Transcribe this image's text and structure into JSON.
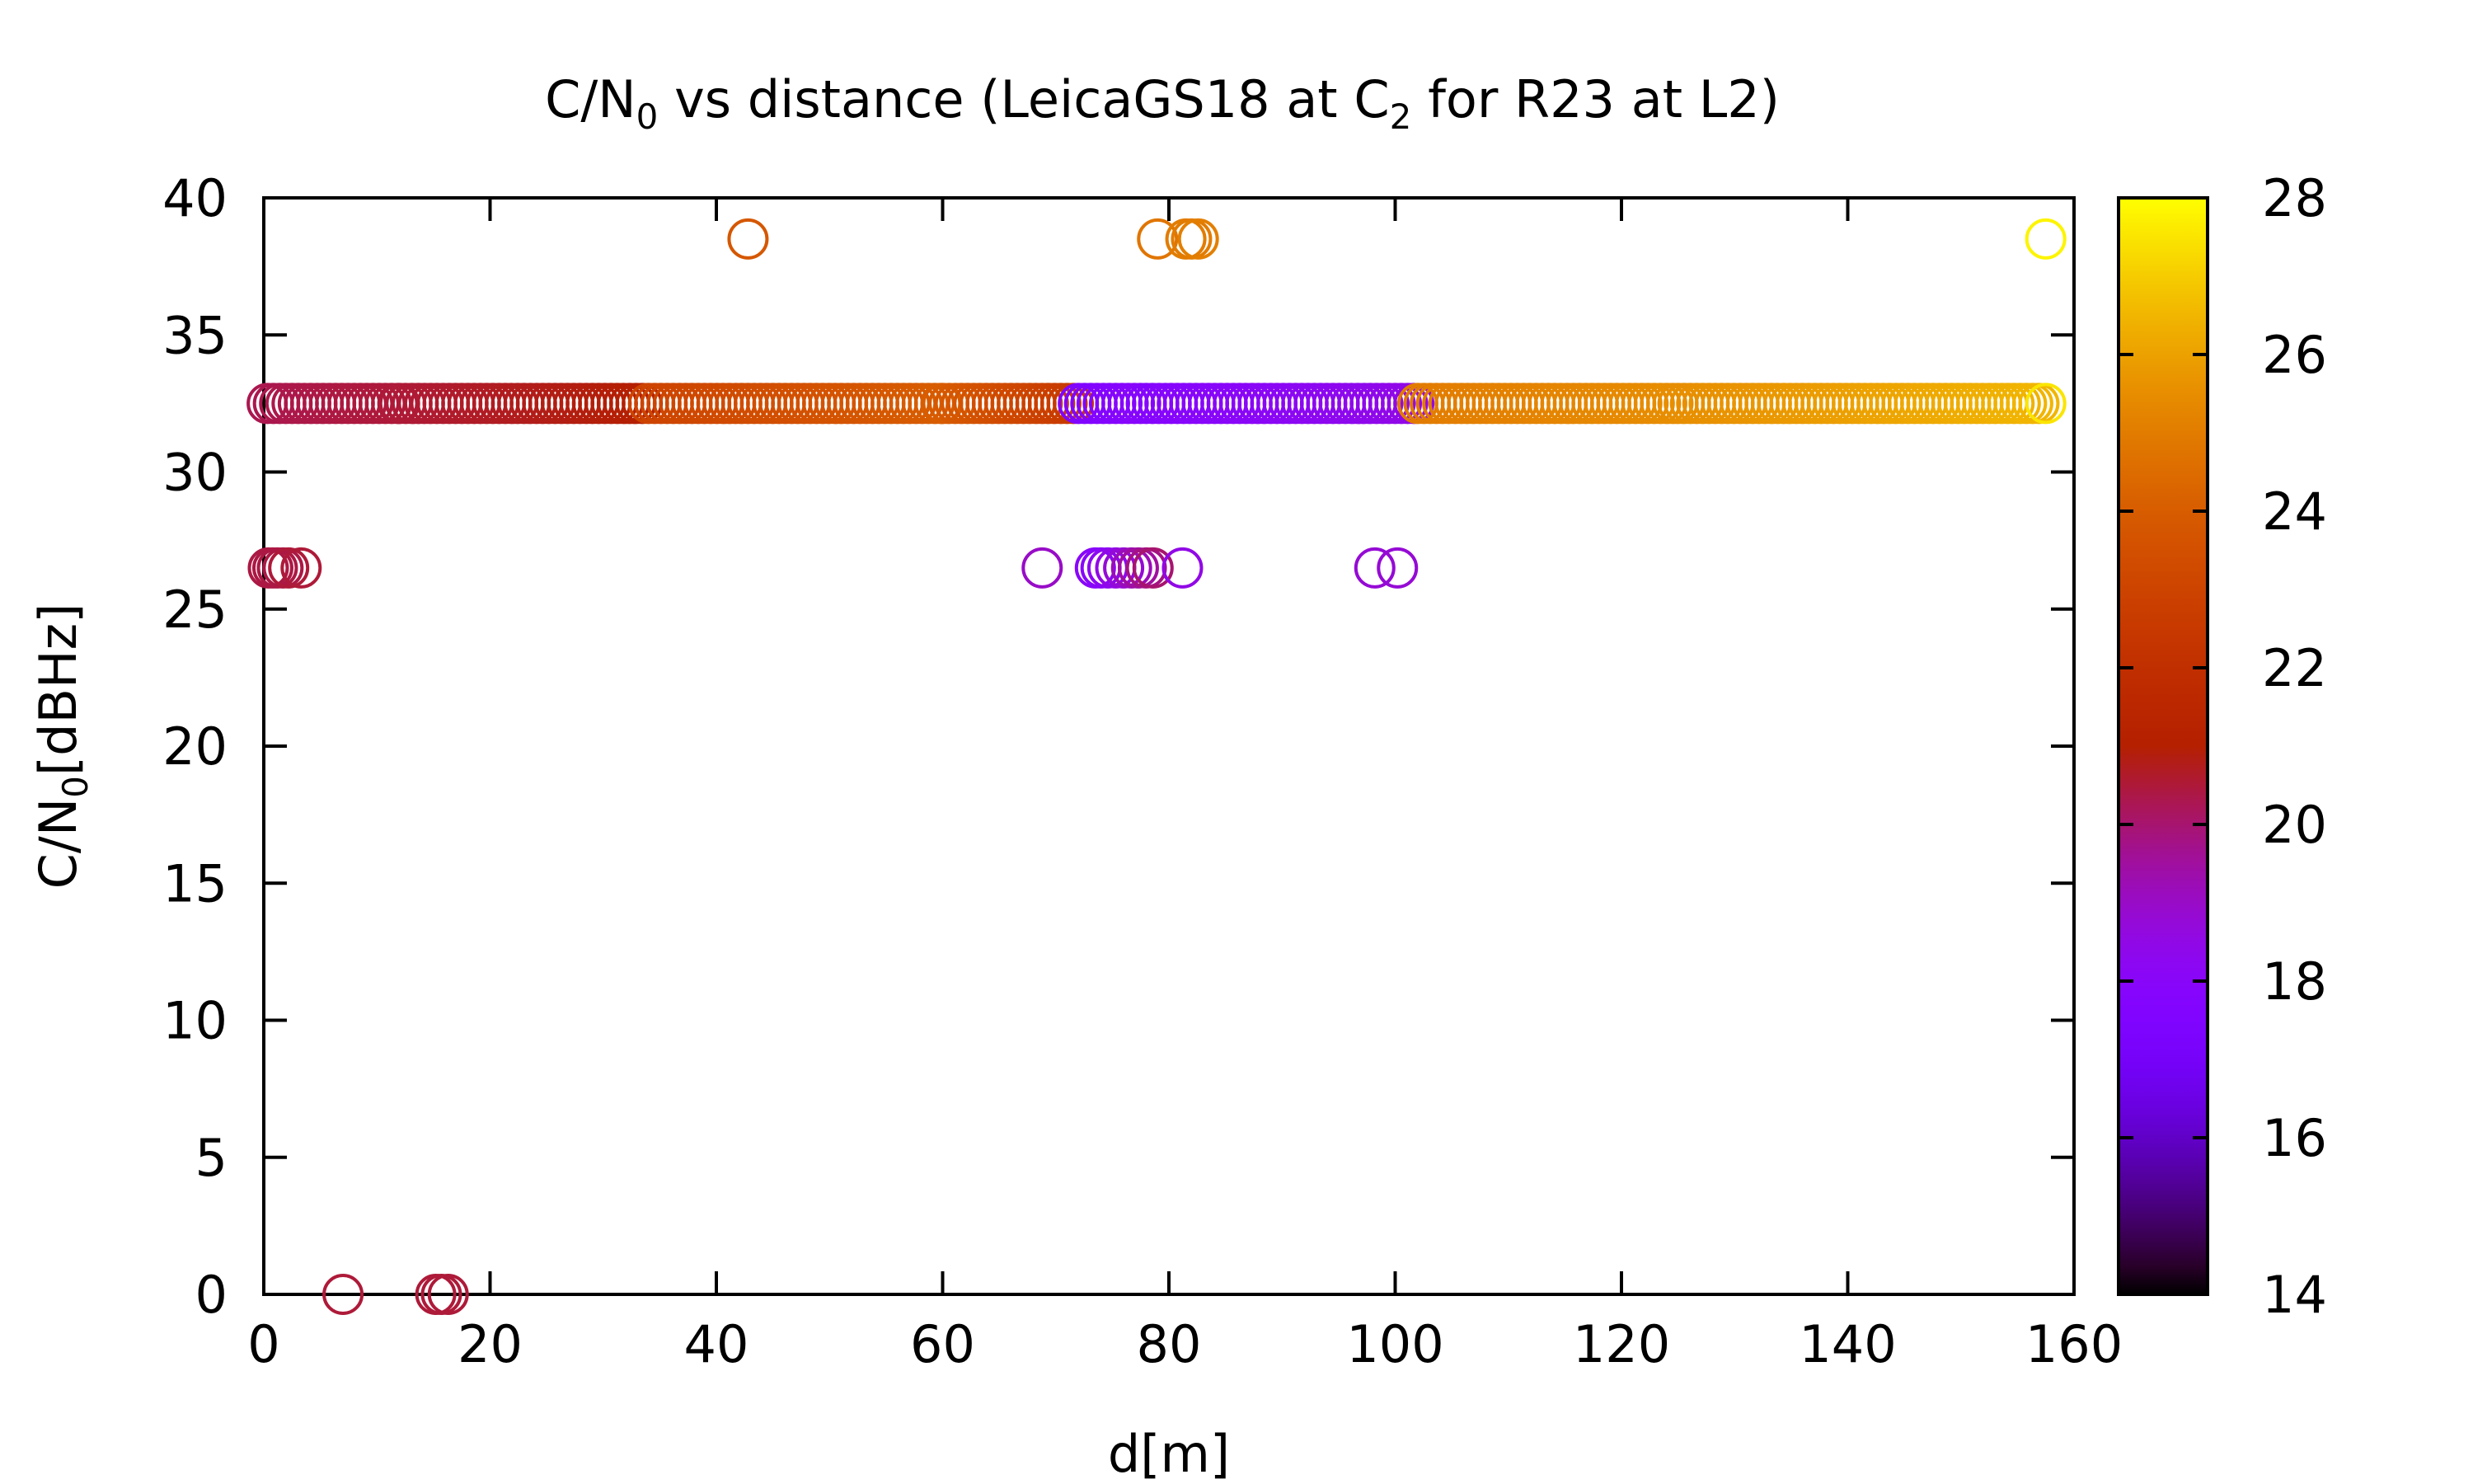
{
  "chart_data": {
    "type": "scatter",
    "title": {
      "prefix": "C/N",
      "sub1": "0",
      "middle": " vs distance (LeicaGS18 at C",
      "sub2": "2",
      "suffix": " for R23 at L2)"
    },
    "xlabel": "d[m]",
    "ylabel": {
      "prefix": "C/N",
      "sub": "0",
      "suffix": "[dBHz]"
    },
    "xlim": [
      0,
      160
    ],
    "ylim": [
      0,
      40
    ],
    "xticks": [
      0,
      20,
      40,
      60,
      80,
      100,
      120,
      140,
      160
    ],
    "yticks": [
      0,
      5,
      10,
      15,
      20,
      25,
      30,
      35,
      40
    ],
    "grid": false,
    "marker": "open-circle",
    "colorbar": {
      "min": 14,
      "max": 28,
      "ticks": [
        14,
        16,
        18,
        20,
        22,
        24,
        26,
        28
      ],
      "palette": "gnuplot default (black-blue-purple-red-orange-yellow)"
    },
    "series": [
      {
        "segments_note": "dense band at C/N0 = 32.5",
        "y": 32.5,
        "runs": [
          {
            "x_start": 0.3,
            "x_end": 12,
            "c_start": 20.3,
            "c_end": 20.5
          },
          {
            "x_start": 12,
            "x_end": 34,
            "c_start": 20.5,
            "c_end": 21.0
          },
          {
            "x_start": 34,
            "x_end": 60,
            "c_start": 23.0,
            "c_end": 24.0
          },
          {
            "x_start": 60,
            "x_end": 72,
            "c_start": 24.0,
            "c_end": 22.5
          },
          {
            "x_start": 72,
            "x_end": 78,
            "c_start": 17.5,
            "c_end": 18.0
          },
          {
            "x_start": 78,
            "x_end": 102,
            "c_start": 17.8,
            "c_end": 18.5
          },
          {
            "x_start": 102,
            "x_end": 125,
            "c_start": 25.0,
            "c_end": 25.5
          },
          {
            "x_start": 125,
            "x_end": 157,
            "c_start": 25.5,
            "c_end": 26.5
          }
        ]
      }
    ],
    "points": [
      {
        "x": 42.8,
        "y": 38.5,
        "c": 23.8
      },
      {
        "x": 79.0,
        "y": 38.5,
        "c": 24.8
      },
      {
        "x": 81.5,
        "y": 38.5,
        "c": 25.0
      },
      {
        "x": 82.0,
        "y": 38.5,
        "c": 25.0
      },
      {
        "x": 82.6,
        "y": 38.5,
        "c": 25.1
      },
      {
        "x": 157.5,
        "y": 38.5,
        "c": 27.8
      },
      {
        "x": 157.5,
        "y": 32.5,
        "c": 27.5
      },
      {
        "x": 0.4,
        "y": 26.5,
        "c": 20.4
      },
      {
        "x": 0.8,
        "y": 26.5,
        "c": 20.4
      },
      {
        "x": 1.2,
        "y": 26.5,
        "c": 20.4
      },
      {
        "x": 1.7,
        "y": 26.5,
        "c": 20.4
      },
      {
        "x": 2.2,
        "y": 26.5,
        "c": 20.5
      },
      {
        "x": 3.3,
        "y": 26.5,
        "c": 20.5
      },
      {
        "x": 68.8,
        "y": 26.5,
        "c": 19.0
      },
      {
        "x": 73.5,
        "y": 26.5,
        "c": 18.0
      },
      {
        "x": 74.0,
        "y": 26.5,
        "c": 18.0
      },
      {
        "x": 74.6,
        "y": 26.5,
        "c": 18.2
      },
      {
        "x": 75.3,
        "y": 26.5,
        "c": 18.5
      },
      {
        "x": 76.0,
        "y": 26.5,
        "c": 18.8
      },
      {
        "x": 76.7,
        "y": 26.5,
        "c": 19.2
      },
      {
        "x": 77.3,
        "y": 26.5,
        "c": 19.5
      },
      {
        "x": 78.0,
        "y": 26.5,
        "c": 19.8
      },
      {
        "x": 78.6,
        "y": 26.5,
        "c": 20.0
      },
      {
        "x": 81.2,
        "y": 26.5,
        "c": 18.5
      },
      {
        "x": 98.2,
        "y": 26.5,
        "c": 18.8
      },
      {
        "x": 100.2,
        "y": 26.5,
        "c": 18.8
      },
      {
        "x": 7.0,
        "y": 0,
        "c": 20.5
      },
      {
        "x": 15.2,
        "y": 0,
        "c": 20.5
      },
      {
        "x": 15.7,
        "y": 0,
        "c": 20.5
      },
      {
        "x": 16.3,
        "y": 0,
        "c": 20.5
      }
    ]
  }
}
